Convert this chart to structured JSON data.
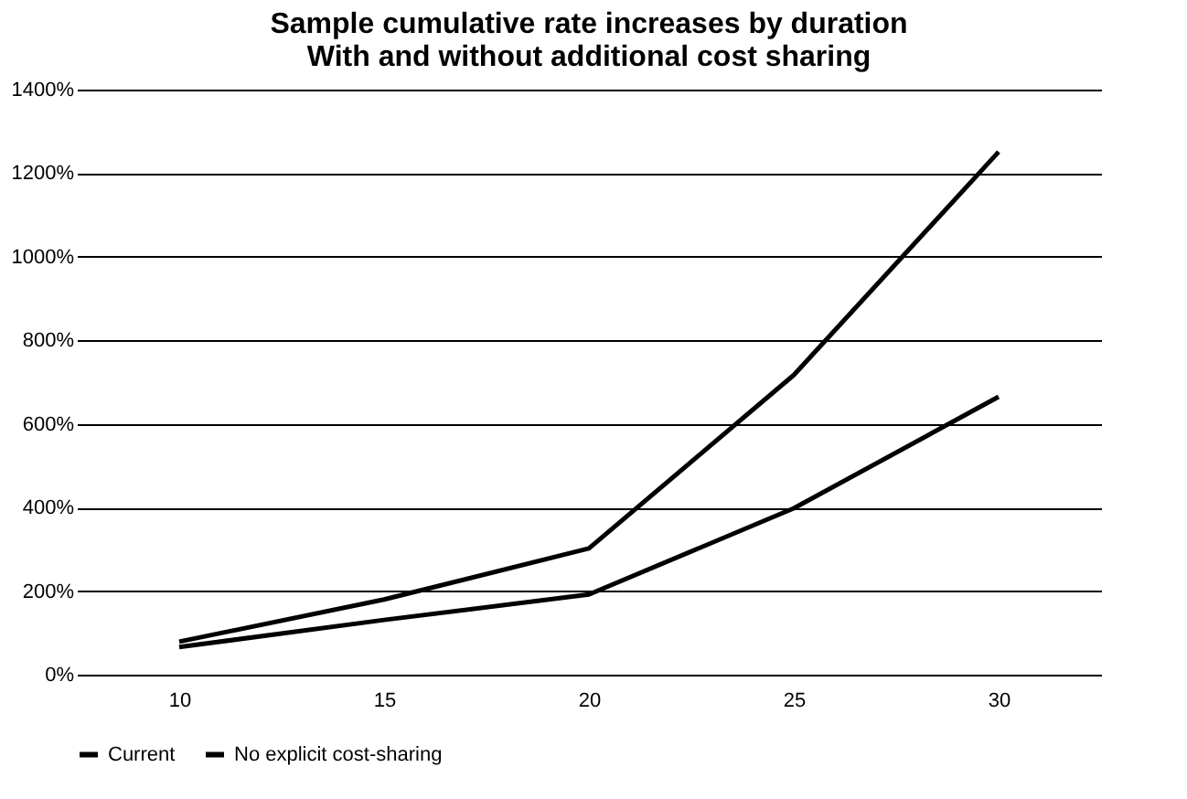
{
  "chart_data": {
    "type": "line",
    "title": [
      "Sample cumulative rate increases by duration",
      "With and without additional cost sharing"
    ],
    "categories": [
      "10",
      "15",
      "20",
      "25",
      "30"
    ],
    "series": [
      {
        "name": "Current",
        "color": "#000000",
        "values": [
          79,
          180,
          302,
          717,
          1251
        ]
      },
      {
        "name": "No explicit cost-sharing",
        "color": "#000000",
        "values": [
          66,
          131,
          192,
          398,
          665
        ]
      }
    ],
    "ylim": [
      0,
      1400
    ],
    "yticks": [
      {
        "value": 0,
        "label": "0%"
      },
      {
        "value": 200,
        "label": "200%"
      },
      {
        "value": 400,
        "label": "400%"
      },
      {
        "value": 600,
        "label": "600%"
      },
      {
        "value": 800,
        "label": "800%"
      },
      {
        "value": 1000,
        "label": "1000%"
      },
      {
        "value": 1200,
        "label": "1200%"
      },
      {
        "value": 1400,
        "label": "1400%"
      }
    ],
    "grid": "y",
    "legend": "bottom",
    "marker": "none",
    "line_style": "solid"
  }
}
